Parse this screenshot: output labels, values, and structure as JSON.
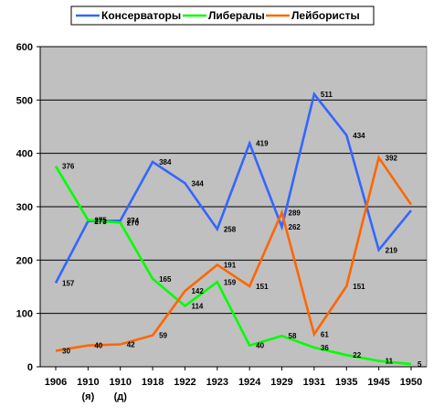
{
  "chart_data": {
    "type": "line",
    "title": "",
    "xlabel": "",
    "ylabel": "",
    "ylim": [
      0,
      600
    ],
    "yticks": [
      0,
      100,
      200,
      300,
      400,
      500,
      600
    ],
    "grid": true,
    "legend_position": "top",
    "categories": [
      "1906",
      "1910",
      "1910",
      "1918",
      "1922",
      "1923",
      "1924",
      "1929",
      "1931",
      "1935",
      "1945",
      "1950"
    ],
    "category_sublabels": [
      "",
      "(я)",
      "(д)",
      "",
      "",
      "",
      "",
      "",
      "",
      "",
      "",
      ""
    ],
    "series": [
      {
        "name": "Консерваторы",
        "color": "#3366ff",
        "values": [
          157,
          273,
          274,
          384,
          344,
          258,
          419,
          262,
          511,
          434,
          219,
          293
        ]
      },
      {
        "name": "Либералы",
        "color": "#00ff00",
        "values": [
          376,
          275,
          270,
          165,
          114,
          159,
          40,
          58,
          36,
          22,
          11,
          5
        ]
      },
      {
        "name": "Лейбористы",
        "color": "#ff6600",
        "values": [
          30,
          40,
          42,
          59,
          142,
          191,
          151,
          289,
          61,
          151,
          392,
          304
        ]
      }
    ],
    "data_labels": [
      {
        "series": 0,
        "index": 0,
        "text": "157"
      },
      {
        "series": 0,
        "index": 1,
        "text": "273"
      },
      {
        "series": 0,
        "index": 2,
        "text": "274"
      },
      {
        "series": 0,
        "index": 3,
        "text": "384"
      },
      {
        "series": 0,
        "index": 4,
        "text": "344"
      },
      {
        "series": 0,
        "index": 5,
        "text": "258"
      },
      {
        "series": 0,
        "index": 6,
        "text": "419"
      },
      {
        "series": 0,
        "index": 7,
        "text": "262"
      },
      {
        "series": 0,
        "index": 8,
        "text": "511"
      },
      {
        "series": 0,
        "index": 9,
        "text": "434"
      },
      {
        "series": 0,
        "index": 10,
        "text": "219"
      },
      {
        "series": 1,
        "index": 0,
        "text": "376"
      },
      {
        "series": 1,
        "index": 1,
        "text": "275"
      },
      {
        "series": 1,
        "index": 2,
        "text": "270"
      },
      {
        "series": 1,
        "index": 3,
        "text": "165"
      },
      {
        "series": 1,
        "index": 4,
        "text": "114"
      },
      {
        "series": 1,
        "index": 5,
        "text": "159"
      },
      {
        "series": 1,
        "index": 6,
        "text": "40"
      },
      {
        "series": 1,
        "index": 7,
        "text": "58"
      },
      {
        "series": 1,
        "index": 8,
        "text": "36"
      },
      {
        "series": 1,
        "index": 9,
        "text": "22"
      },
      {
        "series": 1,
        "index": 10,
        "text": "11"
      },
      {
        "series": 1,
        "index": 11,
        "text": "5"
      },
      {
        "series": 2,
        "index": 0,
        "text": "30"
      },
      {
        "series": 2,
        "index": 1,
        "text": "40"
      },
      {
        "series": 2,
        "index": 2,
        "text": "42"
      },
      {
        "series": 2,
        "index": 3,
        "text": "59"
      },
      {
        "series": 2,
        "index": 4,
        "text": "142"
      },
      {
        "series": 2,
        "index": 5,
        "text": "191"
      },
      {
        "series": 2,
        "index": 6,
        "text": "151"
      },
      {
        "series": 2,
        "index": 7,
        "text": "289"
      },
      {
        "series": 2,
        "index": 8,
        "text": "61"
      },
      {
        "series": 2,
        "index": 9,
        "text": "151"
      },
      {
        "series": 2,
        "index": 10,
        "text": "392"
      }
    ]
  }
}
